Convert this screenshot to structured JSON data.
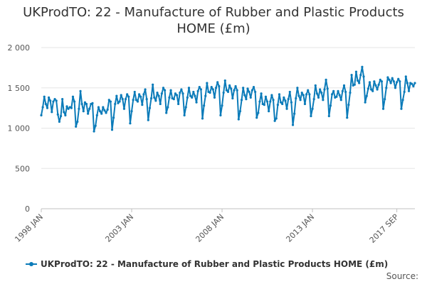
{
  "chart_data": {
    "type": "line",
    "title_line1": "UKProdTO: 22 - Manufacture of Rubber and Plastic Products",
    "title_line2": "HOME (£m)",
    "x_start": "1998 JAN",
    "x_end": "2017 SEP",
    "x_tick_labels": [
      "1998 JAN",
      "2003 JAN",
      "2008 JAN",
      "2013 JAN",
      "2017 SEP"
    ],
    "y_ticks": [
      0,
      500,
      1000,
      1500,
      2000
    ],
    "y_tick_labels": [
      "0",
      "500",
      "1 000",
      "1 500",
      "2 000"
    ],
    "ylim": [
      0,
      2000
    ],
    "grid": "horizontal",
    "legend_position": "bottom",
    "series": [
      {
        "name": "UKProdTO: 22 - Manufacture of Rubber and Plastic Products HOME (£m)",
        "color": "#0b7bb9",
        "values": [
          1160,
          1260,
          1390,
          1300,
          1250,
          1380,
          1340,
          1200,
          1330,
          1360,
          1340,
          1170,
          1080,
          1150,
          1360,
          1200,
          1160,
          1270,
          1240,
          1260,
          1250,
          1390,
          1330,
          1020,
          1080,
          1240,
          1460,
          1300,
          1210,
          1320,
          1300,
          1180,
          1240,
          1300,
          1310,
          960,
          1030,
          1160,
          1260,
          1210,
          1180,
          1260,
          1220,
          1190,
          1230,
          1350,
          1330,
          980,
          1130,
          1300,
          1400,
          1310,
          1330,
          1410,
          1360,
          1240,
          1360,
          1420,
          1390,
          1060,
          1210,
          1350,
          1450,
          1350,
          1330,
          1420,
          1390,
          1290,
          1420,
          1480,
          1360,
          1100,
          1250,
          1370,
          1540,
          1380,
          1340,
          1440,
          1400,
          1300,
          1430,
          1500,
          1470,
          1190,
          1260,
          1380,
          1470,
          1370,
          1360,
          1430,
          1410,
          1300,
          1440,
          1480,
          1430,
          1160,
          1260,
          1380,
          1500,
          1400,
          1380,
          1450,
          1400,
          1320,
          1460,
          1510,
          1480,
          1120,
          1280,
          1400,
          1560,
          1450,
          1440,
          1510,
          1480,
          1380,
          1500,
          1570,
          1520,
          1160,
          1280,
          1440,
          1590,
          1470,
          1450,
          1530,
          1490,
          1370,
          1470,
          1520,
          1470,
          1110,
          1210,
          1350,
          1500,
          1410,
          1360,
          1490,
          1450,
          1380,
          1470,
          1510,
          1450,
          1130,
          1190,
          1330,
          1430,
          1300,
          1290,
          1390,
          1330,
          1210,
          1330,
          1410,
          1350,
          1090,
          1120,
          1290,
          1420,
          1320,
          1300,
          1380,
          1340,
          1240,
          1360,
          1450,
          1320,
          1040,
          1180,
          1370,
          1500,
          1400,
          1350,
          1440,
          1410,
          1300,
          1420,
          1470,
          1420,
          1150,
          1240,
          1360,
          1530,
          1430,
          1380,
          1480,
          1440,
          1350,
          1480,
          1600,
          1490,
          1150,
          1280,
          1420,
          1460,
          1380,
          1390,
          1460,
          1410,
          1350,
          1460,
          1530,
          1450,
          1130,
          1290,
          1440,
          1660,
          1530,
          1540,
          1700,
          1590,
          1560,
          1660,
          1760,
          1640,
          1320,
          1400,
          1490,
          1570,
          1480,
          1460,
          1580,
          1530,
          1480,
          1540,
          1600,
          1580,
          1240,
          1360,
          1500,
          1630,
          1600,
          1560,
          1620,
          1580,
          1500,
          1570,
          1610,
          1580,
          1240,
          1350,
          1450,
          1640,
          1560,
          1460,
          1560,
          1550,
          1520,
          1560
        ]
      }
    ]
  },
  "legend": {
    "label": "UKProdTO: 22 - Manufacture of Rubber and Plastic Products HOME (£m)"
  },
  "source_label": "Source:"
}
